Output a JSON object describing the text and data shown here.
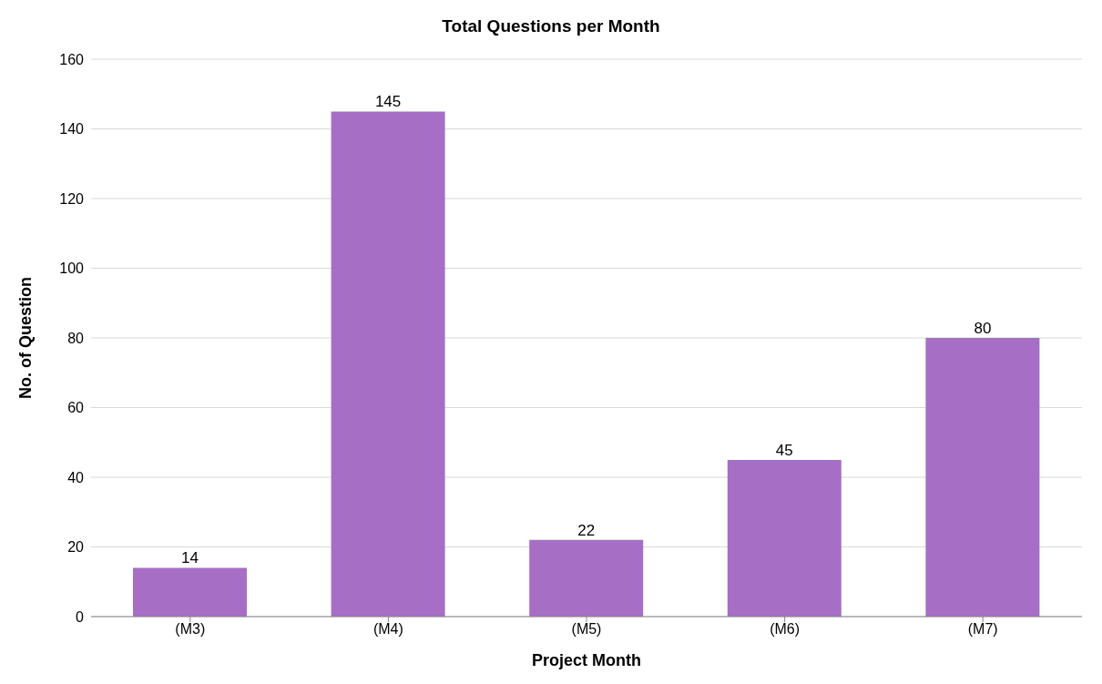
{
  "chart_data": {
    "type": "bar",
    "title": "Total Questions per Month",
    "xlabel": "Project Month",
    "ylabel": "No. of Question",
    "categories": [
      "(M3)",
      "(M4)",
      "(M5)",
      "(M6)",
      "(M7)"
    ],
    "values": [
      14,
      145,
      22,
      45,
      80
    ],
    "color": "#a66ec5",
    "ylim": [
      0,
      160
    ],
    "yticks": [
      0,
      20,
      40,
      60,
      80,
      100,
      120,
      140,
      160
    ],
    "grid": "y",
    "data_labels": true
  }
}
